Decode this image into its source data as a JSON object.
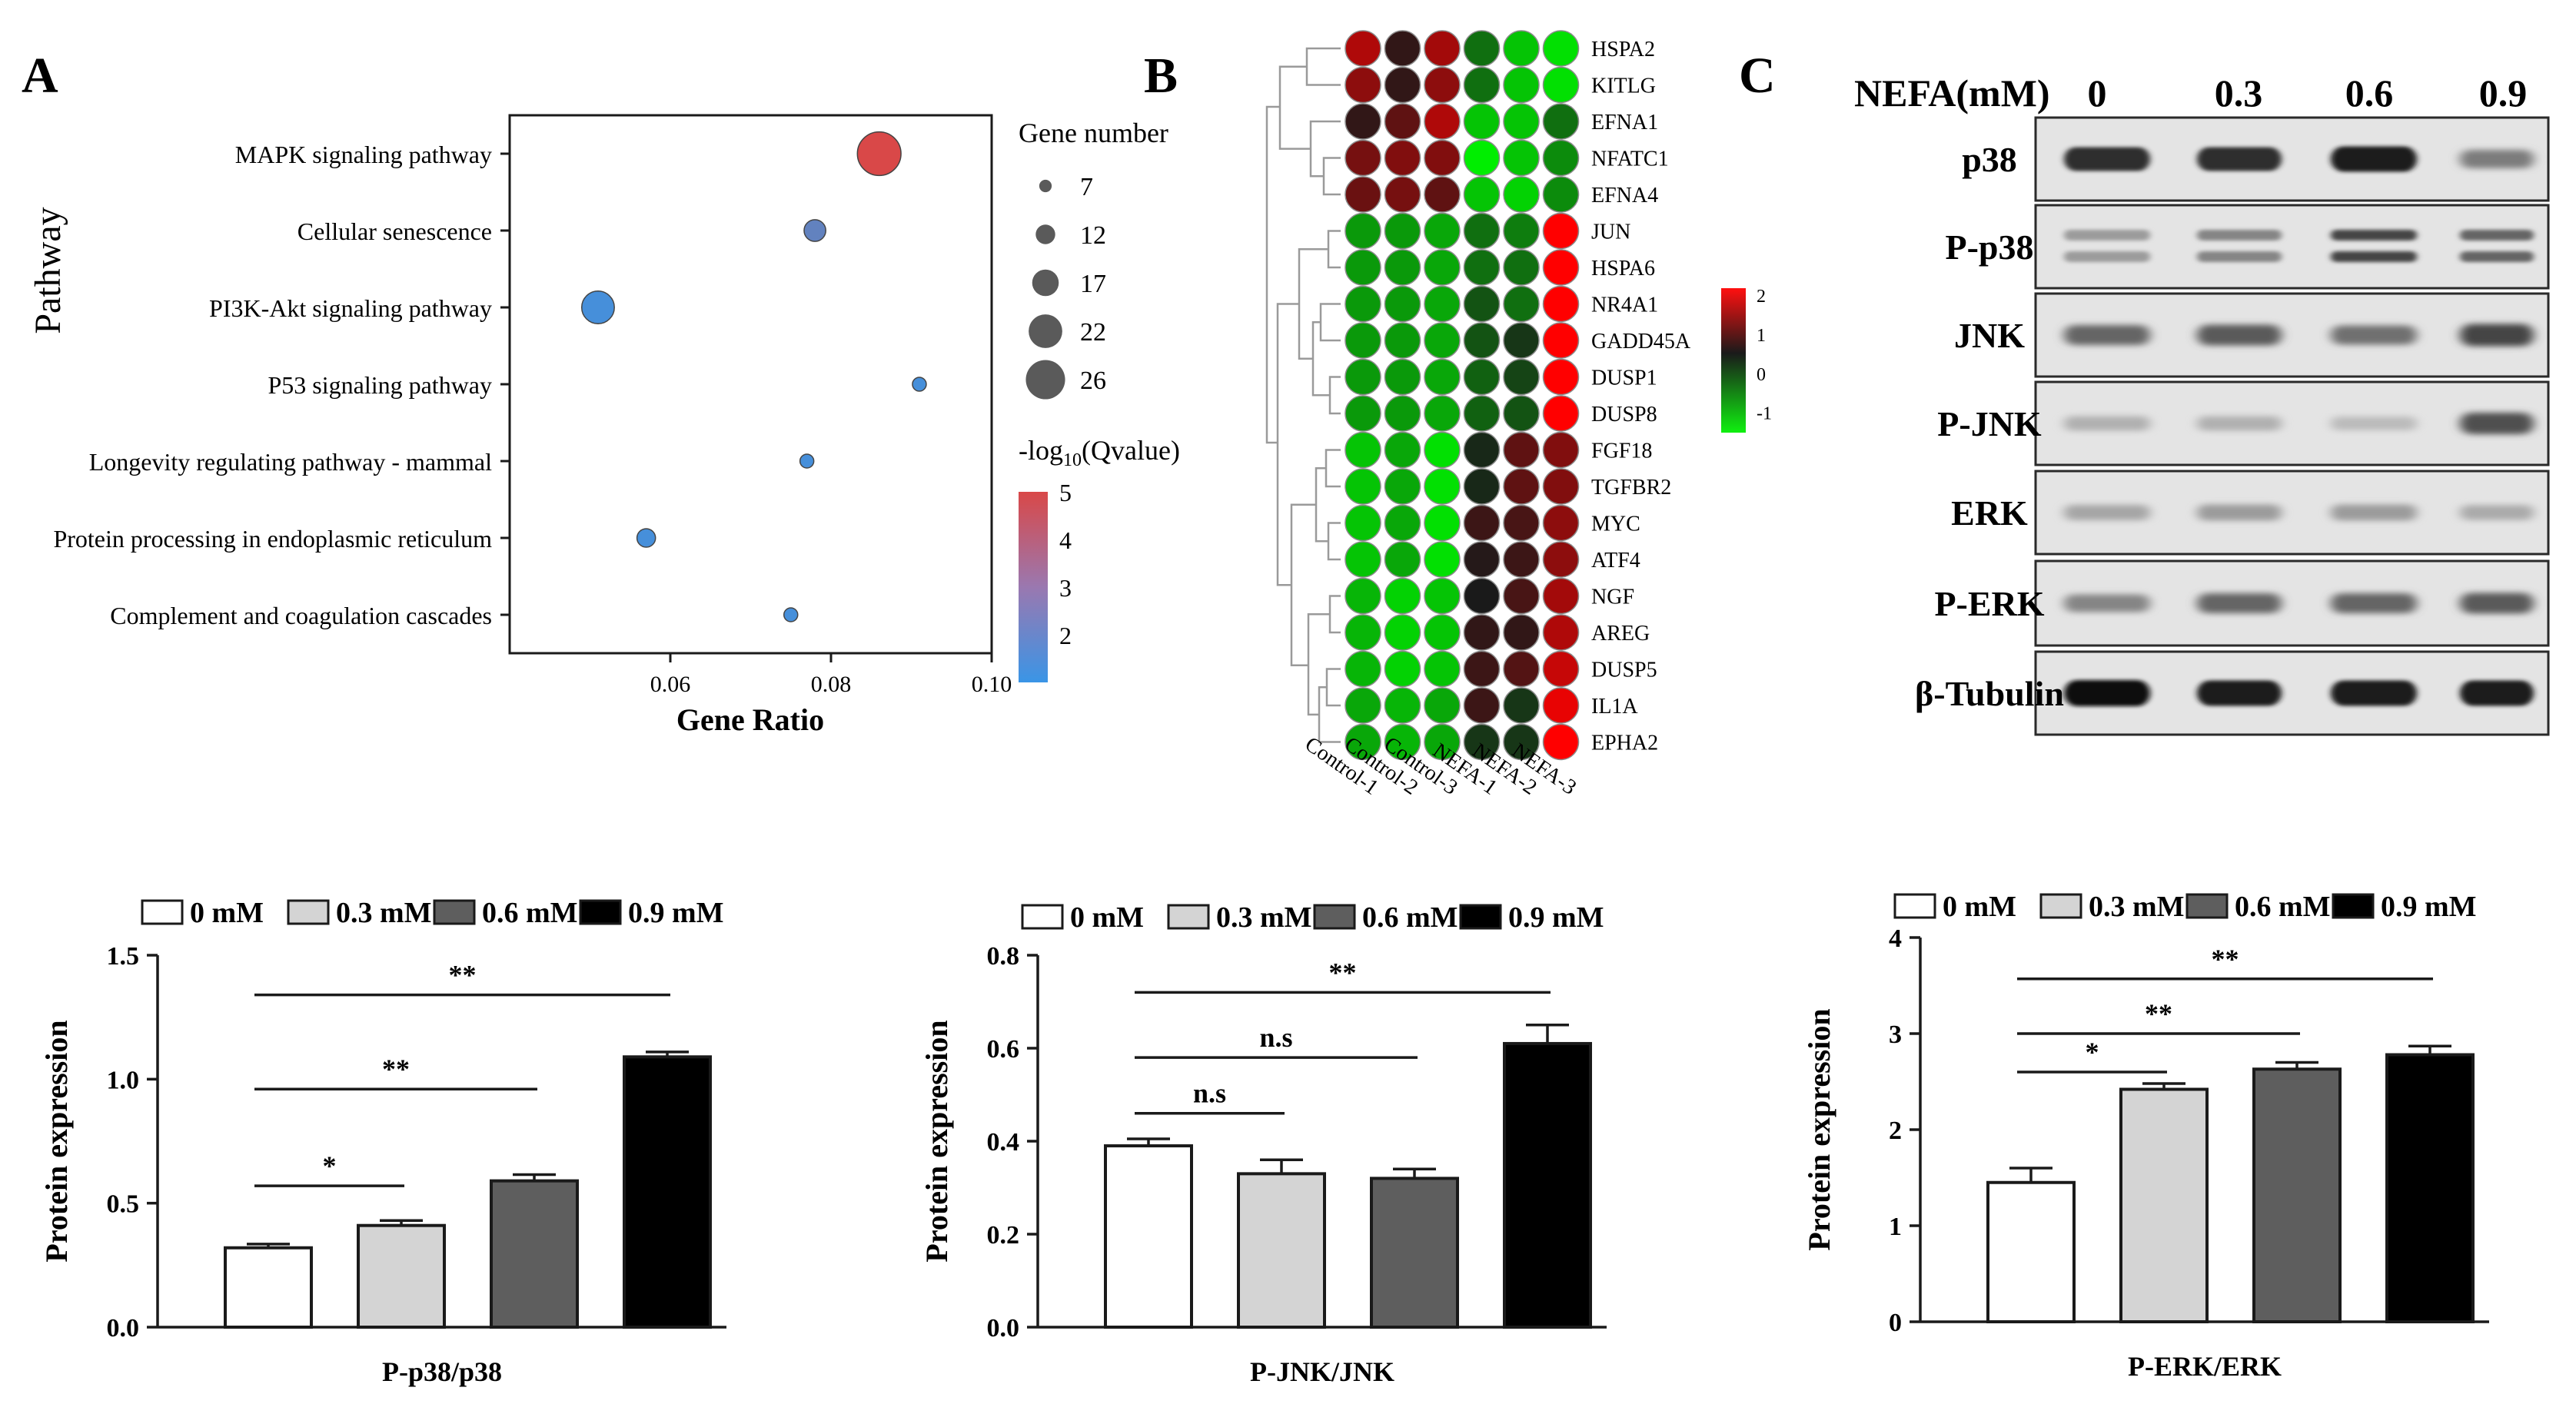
{
  "panels": {
    "A": "A",
    "B": "B",
    "C": "C"
  },
  "colors": {
    "low_q": "#3a95e6",
    "high_q": "#d94848",
    "heat_high": "#ff0000",
    "heat_mid": "#1a1a1a",
    "heat_low": "#00ee00",
    "bar_0": "#ffffff",
    "bar_03": "#d4d4d4",
    "bar_06": "#5e5e5e",
    "bar_09": "#000000"
  },
  "chart_data": [
    {
      "id": "A",
      "type": "scatter",
      "title": "",
      "xlabel": "Gene Ratio",
      "ylabel": "Pathway",
      "xlim": [
        0.04,
        0.1
      ],
      "xticks": [
        0.06,
        0.08,
        0.1
      ],
      "xtick_labels": [
        "0.06",
        "0.08",
        "0.10"
      ],
      "categories": [
        "MAPK signaling pathway",
        "Cellular senescence",
        "PI3K-Akt signaling pathway",
        "P53 signaling pathway",
        "Longevity regulating pathway - mammal",
        "Protein processing in endoplasmic reticulum",
        "Complement and coagulation cascades"
      ],
      "x": [
        0.086,
        0.078,
        0.051,
        0.091,
        0.077,
        0.057,
        0.075
      ],
      "gene_number": [
        26,
        12,
        19,
        7,
        7,
        10,
        7
      ],
      "qvalue": [
        5,
        2,
        1.3,
        1.3,
        1.3,
        1.3,
        1.3
      ],
      "size_legend": {
        "title": "Gene number",
        "values": [
          7,
          12,
          17,
          22,
          26
        ],
        "labels": [
          "7",
          "12",
          "17",
          "22",
          "26"
        ]
      },
      "color_legend": {
        "title_prefix": "-log",
        "title_sub": "10",
        "title_suffix": "(Qvalue)",
        "range": [
          1,
          5
        ],
        "ticks": [
          5,
          4,
          3,
          2
        ],
        "tick_labels": [
          "5",
          "4",
          "3",
          "2"
        ]
      }
    },
    {
      "id": "B",
      "type": "heatmap",
      "genes": [
        "HSPA2",
        "KITLG",
        "EFNA1",
        "NFATC1",
        "EFNA4",
        "JUN",
        "HSPA6",
        "NR4A1",
        "GADD45A",
        "DUSP1",
        "DUSP8",
        "FGF18",
        "TGFBR2",
        "MYC",
        "ATF4",
        "NGF",
        "AREG",
        "DUSP5",
        "IL1A",
        "EPHA2"
      ],
      "samples": [
        "Control-1",
        "Control-2",
        "Control-3",
        "NEFA-1",
        "NEFA-2",
        "NEFA-3"
      ],
      "values": [
        [
          1.3,
          0.2,
          1.2,
          -0.6,
          -1.2,
          -1.4
        ],
        [
          1.0,
          0.2,
          1.0,
          -0.6,
          -1.2,
          -1.4
        ],
        [
          0.2,
          0.6,
          1.3,
          -1.2,
          -1.2,
          -0.6
        ],
        [
          0.8,
          0.9,
          0.9,
          -1.5,
          -1.2,
          -0.8
        ],
        [
          0.7,
          0.8,
          0.6,
          -1.2,
          -1.3,
          -0.8
        ],
        [
          -0.9,
          -0.9,
          -1.0,
          -0.6,
          -0.7,
          2.0
        ],
        [
          -0.9,
          -0.9,
          -1.0,
          -0.6,
          -0.6,
          2.0
        ],
        [
          -0.9,
          -0.9,
          -1.0,
          -0.4,
          -0.6,
          2.0
        ],
        [
          -0.9,
          -0.9,
          -1.0,
          -0.4,
          -0.2,
          2.0
        ],
        [
          -0.9,
          -0.9,
          -1.0,
          -0.5,
          -0.3,
          2.0
        ],
        [
          -0.9,
          -0.9,
          -1.0,
          -0.5,
          -0.4,
          2.0
        ],
        [
          -1.2,
          -1.0,
          -1.4,
          -0.1,
          0.6,
          0.9
        ],
        [
          -1.2,
          -1.0,
          -1.4,
          -0.1,
          0.6,
          0.9
        ],
        [
          -1.2,
          -1.0,
          -1.4,
          0.3,
          0.4,
          1.0
        ],
        [
          -1.2,
          -1.0,
          -1.4,
          0.1,
          0.3,
          1.0
        ],
        [
          -1.1,
          -1.3,
          -1.2,
          0.0,
          0.4,
          1.2
        ],
        [
          -1.1,
          -1.3,
          -1.2,
          0.2,
          0.2,
          1.3
        ],
        [
          -1.1,
          -1.3,
          -1.2,
          0.3,
          0.5,
          1.5
        ],
        [
          -1.0,
          -1.1,
          -1.0,
          0.3,
          -0.2,
          1.8
        ],
        [
          -1.0,
          -1.1,
          -1.0,
          -0.2,
          -0.2,
          2.0
        ]
      ],
      "colorbar": {
        "range": [
          -1.5,
          2.2
        ],
        "ticks": [
          2,
          1,
          0,
          -1
        ],
        "tick_labels": [
          "2",
          "1",
          "0",
          "-1"
        ]
      }
    },
    {
      "id": "C-p38",
      "type": "bar",
      "xlabel": "P-p38/p38",
      "ylabel": "Protein expression",
      "ylim": [
        0,
        1.5
      ],
      "yticks": [
        0.0,
        0.5,
        1.0,
        1.5
      ],
      "ytick_labels": [
        "0.0",
        "0.5",
        "1.0",
        "1.5"
      ],
      "categories": [
        "0 mM",
        "0.3 mM",
        "0.6 mM",
        "0.9 mM"
      ],
      "values": [
        0.32,
        0.41,
        0.59,
        1.09
      ],
      "errors": [
        0.015,
        0.02,
        0.025,
        0.02
      ],
      "significance": [
        {
          "from": 0,
          "to": 1,
          "label": "*",
          "y": 0.57
        },
        {
          "from": 0,
          "to": 2,
          "label": "**",
          "y": 0.96
        },
        {
          "from": 0,
          "to": 3,
          "label": "**",
          "y": 1.34
        }
      ]
    },
    {
      "id": "C-JNK",
      "type": "bar",
      "xlabel": "P-JNK/JNK",
      "ylabel": "Protein expression",
      "ylim": [
        0,
        0.8
      ],
      "yticks": [
        0.0,
        0.2,
        0.4,
        0.6,
        0.8
      ],
      "ytick_labels": [
        "0.0",
        "0.2",
        "0.4",
        "0.6",
        "0.8"
      ],
      "categories": [
        "0 mM",
        "0.3 mM",
        "0.6 mM",
        "0.9 mM"
      ],
      "values": [
        0.39,
        0.33,
        0.32,
        0.61
      ],
      "errors": [
        0.015,
        0.03,
        0.02,
        0.04
      ],
      "significance": [
        {
          "from": 0,
          "to": 1,
          "label": "n.s",
          "y": 0.46
        },
        {
          "from": 0,
          "to": 2,
          "label": "n.s",
          "y": 0.58
        },
        {
          "from": 0,
          "to": 3,
          "label": "**",
          "y": 0.72
        }
      ]
    },
    {
      "id": "C-ERK",
      "type": "bar",
      "xlabel": "P-ERK/ERK",
      "ylabel": "Protein expression",
      "ylim": [
        0,
        4
      ],
      "yticks": [
        0,
        1,
        2,
        3,
        4
      ],
      "ytick_labels": [
        "0",
        "1",
        "2",
        "3",
        "4"
      ],
      "categories": [
        "0 mM",
        "0.3 mM",
        "0.6 mM",
        "0.9 mM"
      ],
      "values": [
        1.45,
        2.42,
        2.63,
        2.78
      ],
      "errors": [
        0.15,
        0.06,
        0.07,
        0.09
      ],
      "significance": [
        {
          "from": 0,
          "to": 1,
          "label": "*",
          "y": 2.6
        },
        {
          "from": 0,
          "to": 2,
          "label": "**",
          "y": 3.0
        },
        {
          "from": 0,
          "to": 3,
          "label": "**",
          "y": 3.57
        }
      ]
    }
  ],
  "western_blot": {
    "header_label": "NEFA(mM)",
    "doses": [
      "0",
      "0.3",
      "0.6",
      "0.9"
    ],
    "bands": [
      {
        "label": "p38",
        "intensity": [
          0.85,
          0.85,
          0.95,
          0.5
        ]
      },
      {
        "label": "P-p38",
        "intensity": [
          0.35,
          0.45,
          0.75,
          0.6
        ]
      },
      {
        "label": "JNK",
        "intensity": [
          0.6,
          0.65,
          0.55,
          0.75
        ]
      },
      {
        "label": "P-JNK",
        "intensity": [
          0.25,
          0.25,
          0.2,
          0.7
        ]
      },
      {
        "label": "ERK",
        "intensity": [
          0.3,
          0.35,
          0.35,
          0.28
        ]
      },
      {
        "label": "P-ERK",
        "intensity": [
          0.45,
          0.6,
          0.6,
          0.65
        ]
      },
      {
        "label": "β-Tubulin",
        "intensity": [
          1.0,
          0.95,
          0.95,
          0.95
        ]
      }
    ]
  }
}
